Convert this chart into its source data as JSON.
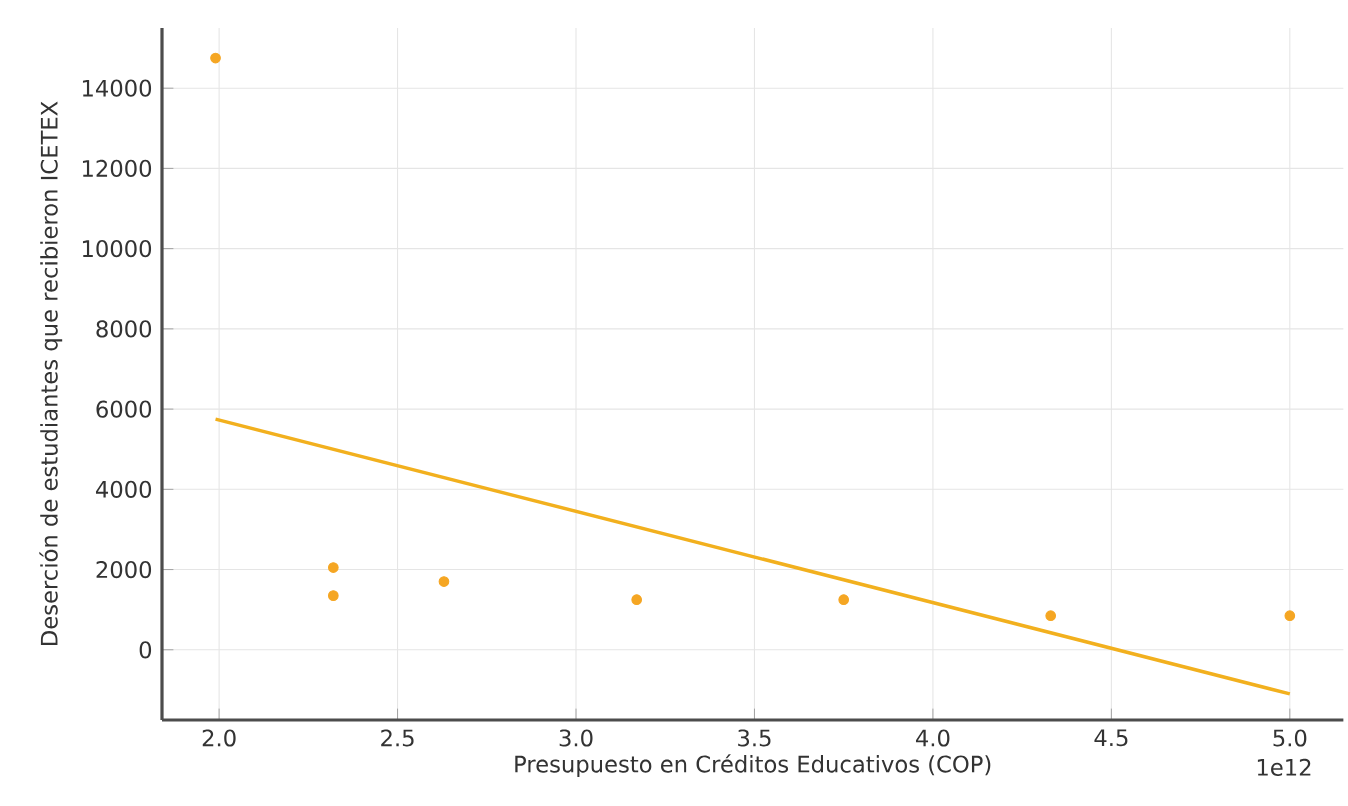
{
  "chart_data": {
    "type": "scatter",
    "xlabel": "Presupuesto en Créditos Educativos (COP)",
    "ylabel": "Deserción de estudiantes que recibieron ICETEX",
    "xlim": [
      1.84,
      5.15
    ],
    "ylim": [
      -1750,
      15500
    ],
    "xticks": [
      {
        "value": 2,
        "label": "2.0"
      },
      {
        "value": 2.5,
        "label": "2.5"
      },
      {
        "value": 3,
        "label": "3.0"
      },
      {
        "value": 3.5,
        "label": "3.5"
      },
      {
        "value": 4,
        "label": "4.0"
      },
      {
        "value": 4.5,
        "label": "4.5"
      },
      {
        "value": 5,
        "label": "5.0"
      }
    ],
    "yticks": [
      0,
      2000,
      4000,
      6000,
      8000,
      10000,
      12000,
      14000
    ],
    "grid": true,
    "marker": "circle",
    "annotations": [
      "1e12"
    ],
    "series": [
      {
        "color": "#f5a623",
        "x": [
          1.99,
          2.32,
          2.32,
          2.63,
          3.17,
          3.75,
          4.33,
          5.0
        ],
        "values": [
          14750,
          2050,
          1350,
          1700,
          1250,
          1250,
          850,
          850
        ]
      },
      {
        "type": "line",
        "color": "#f2b01e",
        "line_style": "solid",
        "marker": "none",
        "x": [
          1.99,
          5.0
        ],
        "values": [
          5750,
          -1100
        ]
      }
    ]
  }
}
